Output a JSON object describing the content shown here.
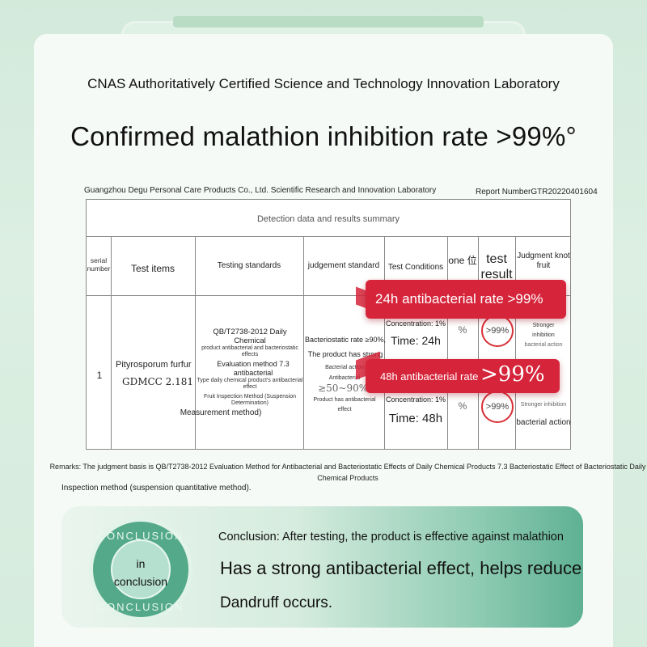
{
  "lab_title": "CNAS Authoritatively Certified Science and Technology Innovation Laboratory",
  "headline": "Confirmed malathion inhibition rate >99%°",
  "report": {
    "company": "Guangzhou Degu Personal Care Products Co., Ltd. Scientific Research and Innovation Laboratory",
    "report_number": "Report NumberGTR20220401604",
    "summary_title": "Detection data and results summary",
    "headers": {
      "serial": "serial number",
      "items": "Test items",
      "standards": "Testing standards",
      "judgement": "judgement standard",
      "conditions": "Test Conditions",
      "unit": "one 位",
      "result": "test result",
      "knot": "Judgment knot fruit"
    },
    "row": {
      "serial": "1",
      "item_name": "Pityrosporum furfur",
      "item_code": "GDMCC 2.181",
      "standard_main": "QB/T2738-2012 Daily Chemical",
      "standard_sub1": "product antibacterial and bacteriostatic effects",
      "standard_eval": "Evaluation method 7.3 antibacterial",
      "standard_sub2": "Type daily chemical product's antibacterial effect",
      "standard_sub3": "Fruit Inspection Method (Suspension Determination)",
      "standard_tail": "Measurement method)",
      "judge_rate": "Bacteriostatic rate ≥90%,",
      "judge_strong": "The product has strong",
      "judge_action": "Bacterial action",
      "judge_antibac": "Antibacterial",
      "judge_range": "≥50~90%,",
      "judge_has": "Product has antibacterial",
      "judge_effect": "effect",
      "cond1_conc": "Concentration: 1%",
      "cond1_time": "Time: 24h",
      "cond2_conc": "Concentration: 1%",
      "cond2_time": "Time: 48h",
      "unit1": "%",
      "unit2": "%",
      "result1": ">99%",
      "result2": ">99%",
      "knot1_a": "Stronger",
      "knot1_b": "inhibition",
      "knot1_c": "bacterial action",
      "knot2_a": "Stronger inhibition",
      "knot2_b": "bacterial action"
    },
    "banner1": "24h antibacterial rate >99%",
    "banner2_label": "48h antibacterial rate",
    "banner2_value": ">99%"
  },
  "remarks": {
    "line1": "Remarks: The judgment basis is QB/T2738-2012 Evaluation Method for Antibacterial and Bacteriostatic Effects of Daily Chemical Products 7.3 Bacteriostatic Effect of Bacteriostatic Daily Chemical Products",
    "line2": "Inspection method (suspension quantitative method)."
  },
  "conclusion": {
    "badge_top": "CONCLUSION",
    "badge_center_1": "in",
    "badge_center_2": "conclusion",
    "badge_bottom": "CONCLUSION",
    "line1": "Conclusion: After testing, the product is effective against malathion",
    "line2": "Has a strong antibacterial effect, helps reduce",
    "line3": "Dandruff occurs."
  },
  "colors": {
    "background": "#d6ecdd",
    "accent_red": "#d6243a",
    "badge_green": "#53a98a"
  }
}
